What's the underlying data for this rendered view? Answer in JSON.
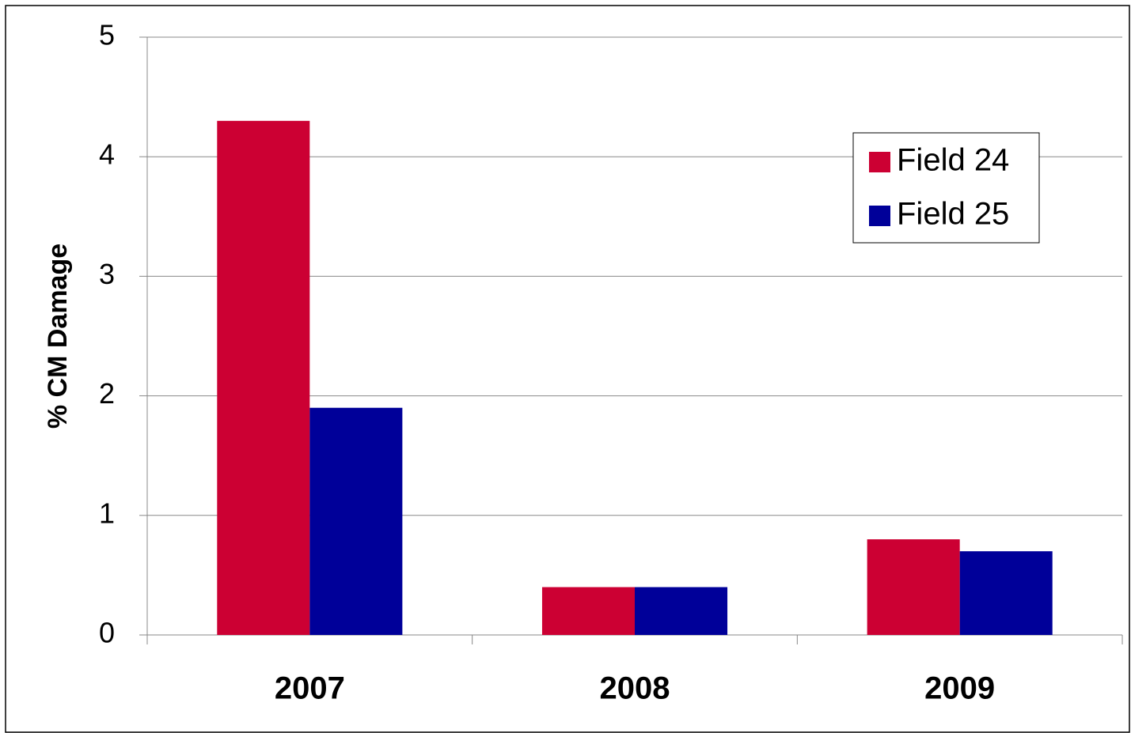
{
  "chart_data": {
    "type": "bar",
    "y_axis_label": "% CM Damage",
    "categories": [
      "2007",
      "2008",
      "2009"
    ],
    "series": [
      {
        "name": "Field 24",
        "color": "#cc0033",
        "values": [
          4.3,
          0.4,
          0.8
        ]
      },
      {
        "name": "Field 25",
        "color": "#000099",
        "values": [
          1.9,
          0.4,
          0.7
        ]
      }
    ],
    "ylim": [
      0,
      5
    ],
    "yticks": [
      0,
      1,
      2,
      3,
      4,
      5
    ],
    "grid": true,
    "legend": "upper right"
  }
}
